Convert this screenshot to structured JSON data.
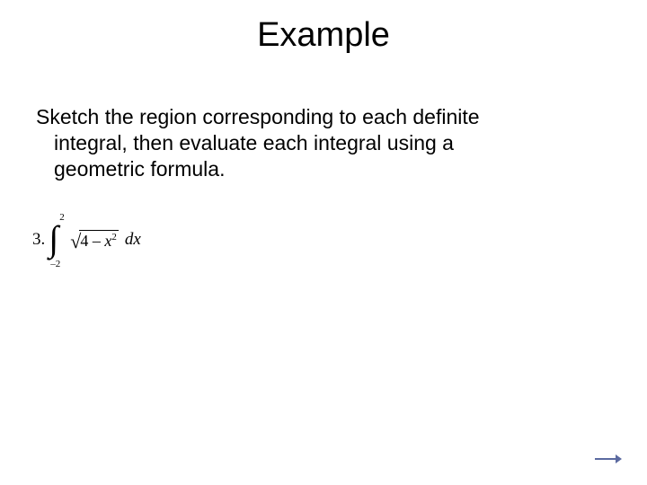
{
  "slide": {
    "title": "Example",
    "body_line1": "Sketch the region corresponding to each definite",
    "body_line2": "integral, then evaluate each integral using a",
    "body_line3": "geometric formula.",
    "problem": {
      "number": "3.",
      "integral_upper": "2",
      "integral_lower": "–2",
      "radicand_left": "4 – ",
      "radicand_var": "x",
      "radicand_exp": "2",
      "dx": "dx"
    }
  },
  "style": {
    "title_fontsize": 38,
    "body_fontsize": 23,
    "formula_fontsize": 19,
    "text_color": "#000000",
    "background_color": "#ffffff",
    "arrow_color": "#5b6aa0"
  }
}
